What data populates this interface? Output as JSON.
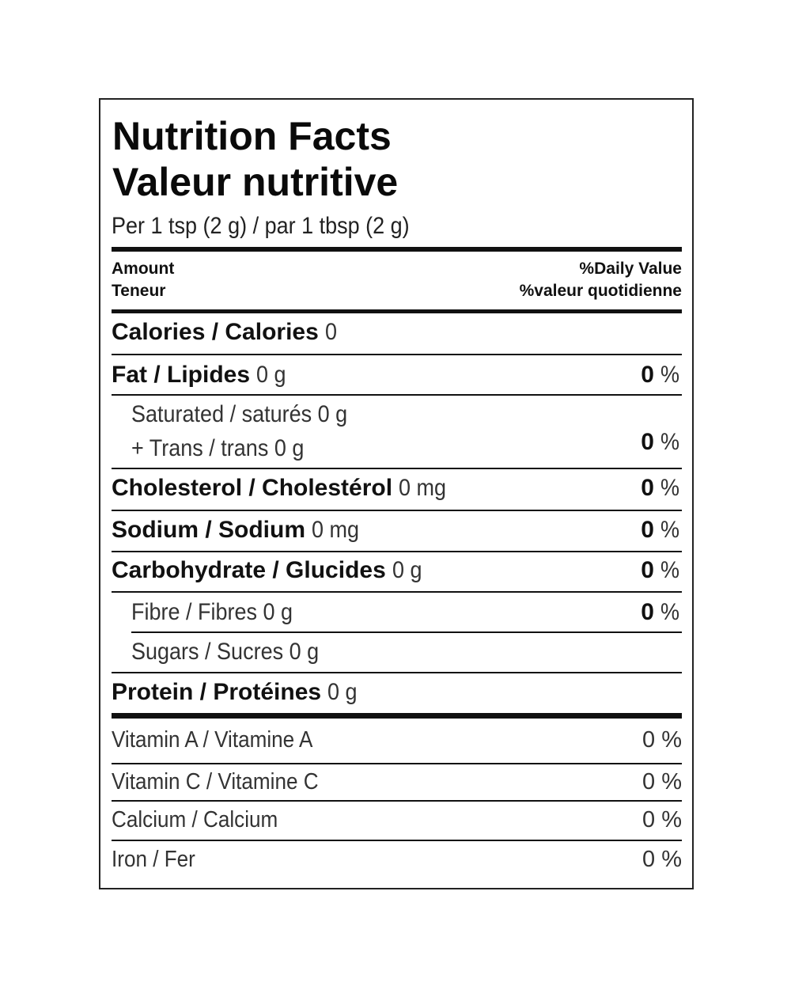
{
  "title_en": "Nutrition Facts",
  "title_fr": "Valeur nutritive",
  "serving": "Per 1 tsp (2 g) / par 1 tbsp (2 g)",
  "header": {
    "amount_en": "Amount",
    "amount_fr": "Teneur",
    "dv_en": "%Daily Value",
    "dv_fr": "%valeur quotidienne"
  },
  "calories": {
    "label": "Calories / Calories",
    "value": "0"
  },
  "nutrients": [
    {
      "label": "Fat / Lipides",
      "amount": "0 g",
      "dv": "0",
      "unit": "%"
    },
    {
      "label": "Saturated / saturés 0 g",
      "label2": "+ Trans / trans 0 g",
      "dv": "0",
      "unit": "%"
    },
    {
      "label": "Cholesterol / Cholestérol",
      "amount": "0 mg",
      "dv": "0",
      "unit": "%"
    },
    {
      "label": "Sodium / Sodium",
      "amount": "0 mg",
      "dv": "0",
      "unit": "%"
    },
    {
      "label": "Carbohydrate / Glucides",
      "amount": "0 g",
      "dv": "0",
      "unit": "%"
    },
    {
      "label": "Fibre / Fibres 0 g",
      "dv": "0",
      "unit": "%"
    },
    {
      "label": "Sugars / Sucres 0 g"
    },
    {
      "label": "Protein / Protéines",
      "amount": "0 g"
    }
  ],
  "vitamins": [
    {
      "label": "Vitamin A / Vitamine A",
      "dv": "0 %"
    },
    {
      "label": "Vitamin C / Vitamine C",
      "dv": "0 %"
    },
    {
      "label": "Calcium / Calcium",
      "dv": "0 %"
    },
    {
      "label": "Iron / Fer",
      "dv": "0 %"
    }
  ]
}
